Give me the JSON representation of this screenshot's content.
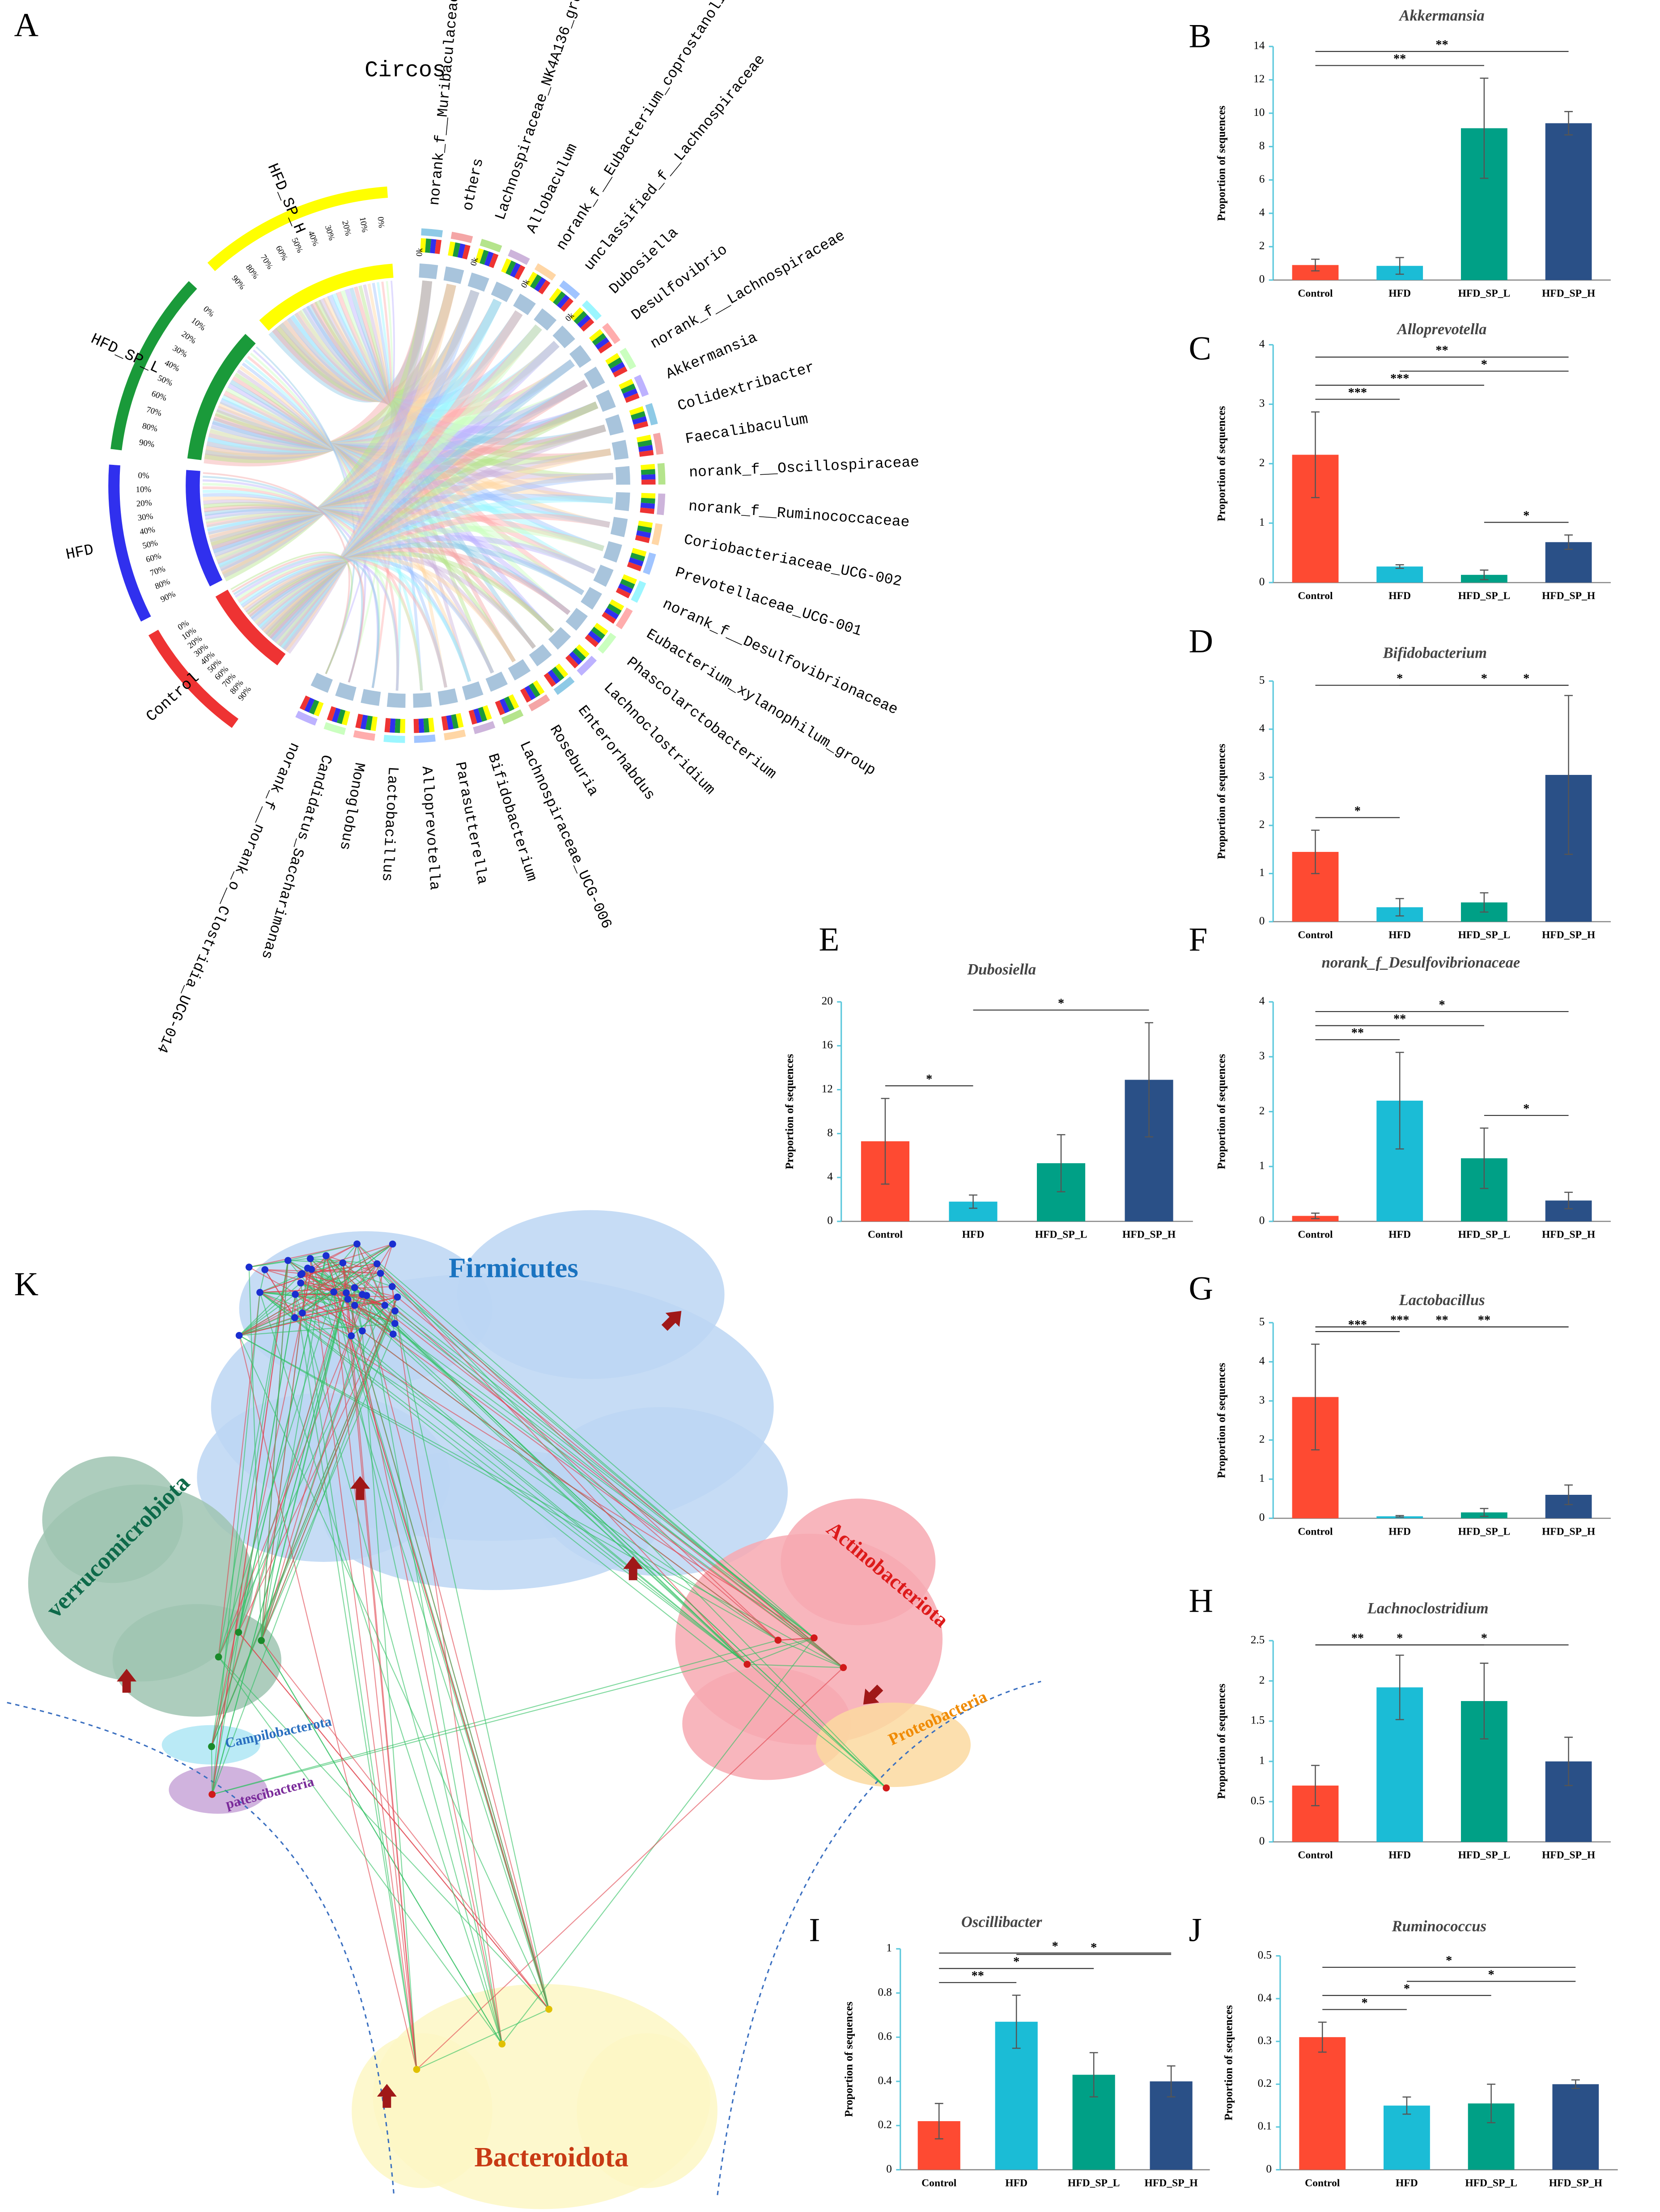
{
  "chart_data": [
    {
      "type": "chord",
      "panel_label": "A",
      "title": "Circos",
      "groups": [
        {
          "name": "HFD_SP_H",
          "color": "#ffff00"
        },
        {
          "name": "HFD_SP_L",
          "color": "#1a9a3a"
        },
        {
          "name": "HFD",
          "color": "#3030ee"
        },
        {
          "name": "Control",
          "color": "#ee3333"
        }
      ],
      "taxa": [
        "norank_f__Muribaculaceae",
        "others",
        "Lachnospiraceae_NK4A136_group",
        "Allobaculum",
        "norank_f__Eubacterium_coprostanoligenes_",
        "unclassified_f__Lachnospiraceae",
        "Dubosiella",
        "Desulfovibrio",
        "norank_f__Lachnospiraceae",
        "Akkermansia",
        "Colidextribacter",
        "Faecalibaculum",
        "norank_f__Oscillospiraceae",
        "norank_f__Ruminococcaceae",
        "Coriobacteriaceae_UCG-002",
        "Prevotellaceae_UCG-001",
        "norank_f__Desulfovibrionaceae",
        "Eubacterium_xylanophilum_group",
        "Phascolarctobacterium",
        "Lachnoclostridium",
        "Enterorhabdus",
        "Roseburia",
        "Lachnospiraceae_UCG-006",
        "Bifidobacterium",
        "Parasutterella",
        "Alloprevotella",
        "Lactobacillus",
        "Monoglobus",
        "Candidatus_Saccharimonas",
        "norank_f__norank_o__Clostridia_UCG-014"
      ],
      "scale_labels": [
        "0%",
        "10%",
        "20%",
        "30%",
        "40%",
        "50%",
        "60%",
        "70%",
        "80%",
        "90%"
      ],
      "flow_label": "0k"
    },
    {
      "type": "bar",
      "panel_label": "B",
      "title": "Akkermansia",
      "y_label": "Proportion of sequences",
      "categories": [
        "Control",
        "HFD",
        "HFD_SP_L",
        "HFD_SP_H"
      ],
      "colors": [
        "#fe4a32",
        "#1bbcd6",
        "#00a086",
        "#2a5087"
      ],
      "values": [
        0.9,
        0.85,
        9.1,
        9.4
      ],
      "errors": [
        0.35,
        0.5,
        3.0,
        0.7
      ],
      "ylim": [
        0,
        14
      ],
      "yticks": [
        0,
        2,
        4,
        6,
        8,
        10,
        12,
        14
      ],
      "significance": [
        {
          "between": [
            "Control",
            "HFD_SP_L"
          ],
          "label": "**"
        },
        {
          "between": [
            "Control",
            "HFD_SP_H"
          ],
          "label": "**"
        }
      ]
    },
    {
      "type": "bar",
      "panel_label": "C",
      "title": "Alloprevotella",
      "y_label": "Proportion of sequences",
      "categories": [
        "Control",
        "HFD",
        "HFD_SP_L",
        "HFD_SP_H"
      ],
      "colors": [
        "#fe4a32",
        "#1bbcd6",
        "#00a086",
        "#2a5087"
      ],
      "values": [
        2.15,
        0.27,
        0.13,
        0.68
      ],
      "errors": [
        0.72,
        0.03,
        0.08,
        0.12
      ],
      "ylim": [
        0,
        4
      ],
      "yticks": [
        0,
        1,
        2,
        3,
        4
      ],
      "significance": [
        {
          "between": [
            "Control",
            "HFD"
          ],
          "label": "***"
        },
        {
          "between": [
            "Control",
            "HFD_SP_L"
          ],
          "label": "***"
        },
        {
          "between": [
            "Control",
            "HFD_SP_H"
          ],
          "label": "**"
        },
        {
          "between": [
            "HFD",
            "HFD_SP_H"
          ],
          "label": "*"
        },
        {
          "between": [
            "HFD_SP_L",
            "HFD_SP_H"
          ],
          "label": "*"
        }
      ]
    },
    {
      "type": "bar",
      "panel_label": "D",
      "title": "Bifidobacterium",
      "y_label": "Proportion of sequences",
      "categories": [
        "Control",
        "HFD",
        "HFD_SP_L",
        "HFD_SP_H"
      ],
      "colors": [
        "#fe4a32",
        "#1bbcd6",
        "#00a086",
        "#2a5087"
      ],
      "values": [
        1.45,
        0.3,
        0.4,
        3.05
      ],
      "errors": [
        0.45,
        0.18,
        0.2,
        1.65
      ],
      "ylim": [
        0,
        5
      ],
      "yticks": [
        0,
        1,
        2,
        3,
        4,
        5
      ],
      "significance": [
        {
          "between": [
            "Control",
            "HFD"
          ],
          "label": "*"
        },
        {
          "between": [
            "Control",
            "HFD_SP_L"
          ],
          "label": "*"
        },
        {
          "between": [
            "HFD",
            "HFD_SP_H"
          ],
          "label": "*"
        },
        {
          "between": [
            "HFD_SP_L",
            "HFD_SP_H"
          ],
          "label": "*"
        }
      ]
    },
    {
      "type": "bar",
      "panel_label": "E",
      "title": "Dubosiella",
      "y_label": "Proportion of sequences",
      "categories": [
        "Control",
        "HFD",
        "HFD_SP_L",
        "HFD_SP_H"
      ],
      "colors": [
        "#fe4a32",
        "#1bbcd6",
        "#00a086",
        "#2a5087"
      ],
      "values": [
        7.3,
        1.8,
        5.3,
        12.9
      ],
      "errors": [
        3.9,
        0.6,
        2.6,
        5.2
      ],
      "ylim": [
        0,
        20
      ],
      "yticks": [
        0,
        4,
        8,
        12,
        16,
        20
      ],
      "significance": [
        {
          "between": [
            "Control",
            "HFD"
          ],
          "label": "*"
        },
        {
          "between": [
            "HFD",
            "HFD_SP_H"
          ],
          "label": "*"
        }
      ]
    },
    {
      "type": "bar",
      "panel_label": "F",
      "title": "norank_f_Desulfovibrionaceae",
      "y_label": "Proportion of sequences",
      "categories": [
        "Control",
        "HFD",
        "HFD_SP_L",
        "HFD_SP_H"
      ],
      "colors": [
        "#fe4a32",
        "#1bbcd6",
        "#00a086",
        "#2a5087"
      ],
      "values": [
        0.1,
        2.2,
        1.15,
        0.38
      ],
      "errors": [
        0.05,
        0.88,
        0.55,
        0.15
      ],
      "ylim": [
        0,
        4
      ],
      "yticks": [
        0,
        1,
        2,
        3,
        4
      ],
      "significance": [
        {
          "between": [
            "Control",
            "HFD"
          ],
          "label": "**"
        },
        {
          "between": [
            "Control",
            "HFD_SP_L"
          ],
          "label": "**"
        },
        {
          "between": [
            "Control",
            "HFD_SP_H"
          ],
          "label": "*"
        },
        {
          "between": [
            "HFD_SP_L",
            "HFD_SP_H"
          ],
          "label": "*"
        }
      ]
    },
    {
      "type": "bar",
      "panel_label": "G",
      "title": "Lactobacillus",
      "y_label": "Proportion of sequences",
      "categories": [
        "Control",
        "HFD",
        "HFD_SP_L",
        "HFD_SP_H"
      ],
      "colors": [
        "#fe4a32",
        "#1bbcd6",
        "#00a086",
        "#2a5087"
      ],
      "values": [
        3.1,
        0.05,
        0.15,
        0.6
      ],
      "errors": [
        1.35,
        0.02,
        0.1,
        0.25
      ],
      "ylim": [
        0,
        5
      ],
      "yticks": [
        0,
        1,
        2,
        3,
        4,
        5
      ],
      "significance": [
        {
          "between": [
            "Control",
            "HFD"
          ],
          "label": "***"
        },
        {
          "between": [
            "Control",
            "HFD_SP_L"
          ],
          "label": "***"
        },
        {
          "between": [
            "Control",
            "HFD_SP_H"
          ],
          "label": "**"
        },
        {
          "between": [
            "HFD",
            "HFD_SP_H"
          ],
          "label": "**"
        }
      ]
    },
    {
      "type": "bar",
      "panel_label": "H",
      "title": "Lachnoclostridium",
      "y_label": "Proportion of sequences",
      "categories": [
        "Control",
        "HFD",
        "HFD_SP_L",
        "HFD_SP_H"
      ],
      "colors": [
        "#fe4a32",
        "#1bbcd6",
        "#00a086",
        "#2a5087"
      ],
      "values": [
        0.7,
        1.92,
        1.75,
        1.0
      ],
      "errors": [
        0.25,
        0.4,
        0.47,
        0.3
      ],
      "ylim": [
        0,
        2.5
      ],
      "yticks": [
        0,
        0.5,
        1,
        1.5,
        2,
        2.5
      ],
      "significance": [
        {
          "between": [
            "Control",
            "HFD"
          ],
          "label": "**"
        },
        {
          "between": [
            "Control",
            "HFD_SP_L"
          ],
          "label": "*"
        },
        {
          "between": [
            "HFD",
            "HFD_SP_H"
          ],
          "label": "*"
        }
      ]
    },
    {
      "type": "bar",
      "panel_label": "I",
      "title": "Oscillibacter",
      "y_label": "Proportion of sequences",
      "categories": [
        "Control",
        "HFD",
        "HFD_SP_L",
        "HFD_SP_H"
      ],
      "colors": [
        "#fe4a32",
        "#1bbcd6",
        "#00a086",
        "#2a5087"
      ],
      "values": [
        0.22,
        0.67,
        0.43,
        0.4
      ],
      "errors": [
        0.08,
        0.12,
        0.1,
        0.07
      ],
      "ylim": [
        0,
        1
      ],
      "yticks": [
        0,
        0.2,
        0.4,
        0.6,
        0.8,
        1
      ],
      "significance": [
        {
          "between": [
            "Control",
            "HFD"
          ],
          "label": "**"
        },
        {
          "between": [
            "Control",
            "HFD_SP_L"
          ],
          "label": "*"
        },
        {
          "between": [
            "Control",
            "HFD_SP_H"
          ],
          "label": "*"
        },
        {
          "between": [
            "HFD",
            "HFD_SP_H"
          ],
          "label": "*"
        }
      ]
    },
    {
      "type": "bar",
      "panel_label": "J",
      "title": "Ruminococcus",
      "y_label": "Proportion of sequences",
      "categories": [
        "Control",
        "HFD",
        "HFD_SP_L",
        "HFD_SP_H"
      ],
      "colors": [
        "#fe4a32",
        "#1bbcd6",
        "#00a086",
        "#2a5087"
      ],
      "values": [
        0.31,
        0.15,
        0.155,
        0.2
      ],
      "errors": [
        0.035,
        0.02,
        0.045,
        0.01
      ],
      "ylim": [
        0,
        0.5
      ],
      "yticks": [
        0,
        0.1,
        0.2,
        0.3,
        0.4,
        0.5
      ],
      "significance": [
        {
          "between": [
            "Control",
            "HFD"
          ],
          "label": "*"
        },
        {
          "between": [
            "Control",
            "HFD_SP_L"
          ],
          "label": "*"
        },
        {
          "between": [
            "Control",
            "HFD_SP_H"
          ],
          "label": "*"
        },
        {
          "between": [
            "HFD",
            "HFD_SP_H"
          ],
          "label": "*"
        }
      ]
    },
    {
      "type": "network",
      "panel_label": "K",
      "clusters": [
        {
          "name": "Firmicutes",
          "color": "#bcd6f3",
          "label_color": "#1a73c0"
        },
        {
          "name": "verrucomicrobiota",
          "color": "#9fc4b2",
          "label_color": "#0e6a4a"
        },
        {
          "name": "Actinobacteriota",
          "color": "#f7a9b2",
          "label_color": "#dd1a1a"
        },
        {
          "name": "Campilobacterota",
          "color": "#aee6f5",
          "label_color": "#2a6fc0"
        },
        {
          "name": "patescibacteria",
          "color": "#c8a6d8",
          "label_color": "#7a2a9a"
        },
        {
          "name": "Proteobacteria",
          "color": "#fbd9a0",
          "label_color": "#f08a00"
        },
        {
          "name": "Bacteroidota",
          "color": "#fdf7c4",
          "label_color": "#c83a14"
        }
      ]
    }
  ]
}
